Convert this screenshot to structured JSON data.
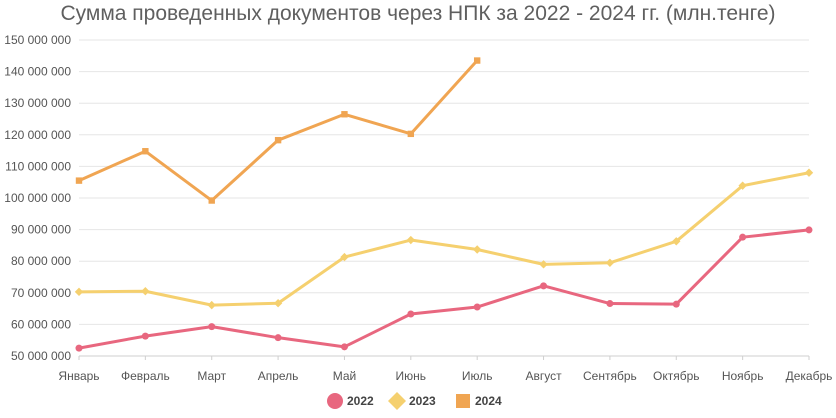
{
  "chart_data": {
    "type": "line",
    "title": "Сумма проведенных документов через НПК за 2022 - 2024 гг. (млн.тенге)",
    "categories": [
      "Январь",
      "Февраль",
      "Март",
      "Апрель",
      "Май",
      "Июнь",
      "Июль",
      "Август",
      "Сентябрь",
      "Октябрь",
      "Ноябрь",
      "Декабрь"
    ],
    "ylim": [
      50000000,
      150000000
    ],
    "yticks": [
      50000000,
      60000000,
      70000000,
      80000000,
      90000000,
      100000000,
      110000000,
      120000000,
      130000000,
      140000000,
      150000000
    ],
    "ytick_labels": [
      "50 000 000",
      "60 000 000",
      "70 000 000",
      "80 000 000",
      "90 000 000",
      "100 000 000",
      "110 000 000",
      "120 000 000",
      "130 000 000",
      "140 000 000",
      "150 000 000"
    ],
    "grid": true,
    "legend": "bottom-center",
    "series": [
      {
        "name": "2022",
        "color": "#e8677f",
        "marker": "circle",
        "values": [
          52500000,
          56300000,
          59300000,
          55800000,
          52900000,
          63300000,
          65500000,
          72200000,
          66600000,
          66400000,
          87600000,
          89900000
        ]
      },
      {
        "name": "2023",
        "color": "#f5d06f",
        "marker": "diamond",
        "values": [
          70300000,
          70500000,
          66100000,
          66700000,
          81300000,
          86700000,
          83700000,
          79000000,
          79500000,
          86300000,
          103900000,
          108000000
        ]
      },
      {
        "name": "2024",
        "color": "#f0a552",
        "marker": "square",
        "values": [
          105500000,
          114800000,
          99200000,
          118300000,
          126500000,
          120300000,
          143500000,
          null,
          null,
          null,
          null,
          null
        ]
      }
    ]
  }
}
